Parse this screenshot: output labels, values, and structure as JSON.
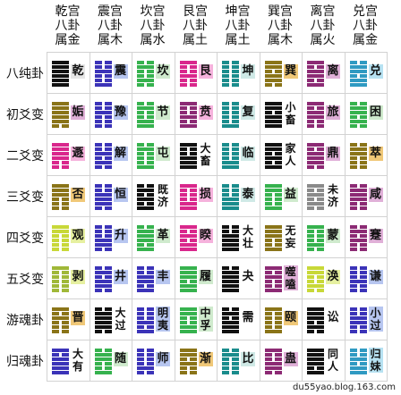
{
  "columns": [
    {
      "lines": [
        "乾宫",
        "八卦",
        "属金"
      ],
      "color": "#111111"
    },
    {
      "lines": [
        "震宫",
        "八卦",
        "属木"
      ],
      "color": "#3b33b8"
    },
    {
      "lines": [
        "坎宫",
        "八卦",
        "属水"
      ],
      "color": "#36b24e"
    },
    {
      "lines": [
        "艮宫",
        "八卦",
        "属土"
      ],
      "color": "#d9278c"
    },
    {
      "lines": [
        "坤宫",
        "八卦",
        "属土"
      ],
      "color": "#1a8c8c"
    },
    {
      "lines": [
        "巽宫",
        "八卦",
        "属木"
      ],
      "color": "#8a7418"
    },
    {
      "lines": [
        "离宫",
        "八卦",
        "属火"
      ],
      "color": "#8c2a74"
    },
    {
      "lines": [
        "兑宫",
        "八卦",
        "属金"
      ],
      "color": "#2f9ac2"
    }
  ],
  "rows": [
    "八纯卦",
    "初爻变",
    "二爻变",
    "三爻变",
    "四爻变",
    "五爻变",
    "游魂卦",
    "归魂卦"
  ],
  "cells": [
    [
      {
        "name": "乾",
        "lines": "111111",
        "color": "#111111",
        "bg": "#f0f0f0",
        "label_bg": "#e6e6e6"
      },
      {
        "name": "震",
        "lines": "100100",
        "color": "#3b33b8",
        "bg": "#f5f5ff",
        "label_bg": "#b7c6f0"
      },
      {
        "name": "坎",
        "lines": "010010",
        "color": "#36b24e",
        "bg": "#f2fbf2",
        "label_bg": "#cfeacd"
      },
      {
        "name": "艮",
        "lines": "001001",
        "color": "#d9278c",
        "bg": "#fdf1f8",
        "label_bg": "#f5b2dc"
      },
      {
        "name": "坤",
        "lines": "000000",
        "color": "#1a8c8c",
        "bg": "#eefaf8",
        "label_bg": "#cfe9e6"
      },
      {
        "name": "巽",
        "lines": "011011",
        "color": "#8a7418",
        "bg": "#fff8e0",
        "label_bg": "#f0c878"
      },
      {
        "name": "离",
        "lines": "101101",
        "color": "#8c2a74",
        "bg": "#fbf2f9",
        "label_bg": "#e0b0d8"
      },
      {
        "name": "兑",
        "lines": "110110",
        "color": "#2f9ac2",
        "bg": "#eef8fc",
        "label_bg": "#b7e2f2"
      }
    ],
    [
      {
        "name": "姤",
        "lines": "011111",
        "color": "#8a7418",
        "bg": "#fff8e0",
        "label_bg": "#e0b0d8"
      },
      {
        "name": "豫",
        "lines": "000100",
        "color": "#3b33b8",
        "bg": "#f5f5ff",
        "label_bg": "#b7c6f0"
      },
      {
        "name": "节",
        "lines": "110010",
        "color": "#36b24e",
        "bg": "#f2fbf2",
        "label_bg": "#cfeacd"
      },
      {
        "name": "贲",
        "lines": "101001",
        "color": "#8c2a74",
        "bg": "#fdf1f8",
        "label_bg": "#f5b2dc"
      },
      {
        "name": "复",
        "lines": "100000",
        "color": "#1a8c8c",
        "bg": "#eefaf8",
        "label_bg": "#cfe9e6"
      },
      {
        "name": "小畜",
        "lines": "111011",
        "color": "#111111",
        "bg": "#ffffff",
        "label_bg": "#ffffff"
      },
      {
        "name": "旅",
        "lines": "001101",
        "color": "#8c2a74",
        "bg": "#fbf2f9",
        "label_bg": "#e0b0d8"
      },
      {
        "name": "困",
        "lines": "010110",
        "color": "#36b24e",
        "bg": "#eef8fc",
        "label_bg": "#cfeacd"
      }
    ],
    [
      {
        "name": "遯",
        "lines": "001111",
        "color": "#d9278c",
        "bg": "#fdf1f8",
        "label_bg": "#f5b2dc"
      },
      {
        "name": "解",
        "lines": "010100",
        "color": "#3b33b8",
        "bg": "#f5f5ff",
        "label_bg": "#b7c6f0"
      },
      {
        "name": "屯",
        "lines": "100010",
        "color": "#36b24e",
        "bg": "#f2fbf2",
        "label_bg": "#cfeacd"
      },
      {
        "name": "大畜",
        "lines": "111001",
        "color": "#111111",
        "bg": "#ffffff",
        "label_bg": "#ffffff"
      },
      {
        "name": "临",
        "lines": "110000",
        "color": "#1a8c8c",
        "bg": "#eefaf8",
        "label_bg": "#cfe9e6"
      },
      {
        "name": "家人",
        "lines": "101011",
        "color": "#111111",
        "bg": "#ffffff",
        "label_bg": "#ffffff"
      },
      {
        "name": "鼎",
        "lines": "011101",
        "color": "#8c2a74",
        "bg": "#fbf2f9",
        "label_bg": "#e0b0d8"
      },
      {
        "name": "萃",
        "lines": "000110",
        "color": "#8a7418",
        "bg": "#fff8e0",
        "label_bg": "#f0c878"
      }
    ],
    [
      {
        "name": "否",
        "lines": "000111",
        "color": "#8a7418",
        "bg": "#fff8e0",
        "label_bg": "#f0c878"
      },
      {
        "name": "恒",
        "lines": "011100",
        "color": "#3b33b8",
        "bg": "#f5f5ff",
        "label_bg": "#b7c6f0"
      },
      {
        "name": "既济",
        "lines": "101010",
        "color": "#111111",
        "bg": "#ffffff",
        "label_bg": "#ffffff"
      },
      {
        "name": "损",
        "lines": "110001",
        "color": "#d9278c",
        "bg": "#fdf1f8",
        "label_bg": "#f5b2dc"
      },
      {
        "name": "泰",
        "lines": "111000",
        "color": "#1a8c8c",
        "bg": "#eefaf8",
        "label_bg": "#cfe9e6"
      },
      {
        "name": "益",
        "lines": "100011",
        "color": "#36b24e",
        "bg": "#f2fbf2",
        "label_bg": "#cfeacd"
      },
      {
        "name": "未济",
        "lines": "010101",
        "color": "#8a8a8a",
        "bg": "#ffffff",
        "label_bg": "#ffffff"
      },
      {
        "name": "咸",
        "lines": "001110",
        "color": "#8c2a74",
        "bg": "#fbf2f9",
        "label_bg": "#e0b0d8"
      }
    ],
    [
      {
        "name": "观",
        "lines": "000011",
        "color": "#c8d838",
        "bg": "#fbfde8",
        "label_bg": "#e6f0a0"
      },
      {
        "name": "升",
        "lines": "011000",
        "color": "#3b33b8",
        "bg": "#f5f5ff",
        "label_bg": "#b7c6f0"
      },
      {
        "name": "革",
        "lines": "101110",
        "color": "#36b24e",
        "bg": "#f2fbf2",
        "label_bg": "#cfeacd"
      },
      {
        "name": "睽",
        "lines": "110101",
        "color": "#d9278c",
        "bg": "#fdf1f8",
        "label_bg": "#f5b2dc"
      },
      {
        "name": "大壮",
        "lines": "111100",
        "color": "#111111",
        "bg": "#ffffff",
        "label_bg": "#ffffff"
      },
      {
        "name": "无妄",
        "lines": "100111",
        "color": "#8a7418",
        "bg": "#fff8e0",
        "label_bg": "#ffffff"
      },
      {
        "name": "蒙",
        "lines": "010001",
        "color": "#36b24e",
        "bg": "#f2fbf2",
        "label_bg": "#cfeacd"
      },
      {
        "name": "蹇",
        "lines": "001010",
        "color": "#8c2a74",
        "bg": "#fbf2f9",
        "label_bg": "#e0b0d8"
      }
    ],
    [
      {
        "name": "剥",
        "lines": "000001",
        "color": "#a0b838",
        "bg": "#fbfde8",
        "label_bg": "#e6f0a0"
      },
      {
        "name": "井",
        "lines": "011010",
        "color": "#3b33b8",
        "bg": "#f5f5ff",
        "label_bg": "#b7c6f0"
      },
      {
        "name": "丰",
        "lines": "101100",
        "color": "#3b33b8",
        "bg": "#f5f5ff",
        "label_bg": "#b7c6f0"
      },
      {
        "name": "履",
        "lines": "110111",
        "color": "#36b24e",
        "bg": "#f2fbf2",
        "label_bg": "#cfeacd"
      },
      {
        "name": "夬",
        "lines": "111110",
        "color": "#111111",
        "bg": "#ffffff",
        "label_bg": "#ffffff"
      },
      {
        "name": "噬嗑",
        "lines": "100101",
        "color": "#8c2a74",
        "bg": "#fbf2f9",
        "label_bg": "#e0b0d8"
      },
      {
        "name": "涣",
        "lines": "010011",
        "color": "#c8d838",
        "bg": "#fbfde8",
        "label_bg": "#e6f0a0"
      },
      {
        "name": "谦",
        "lines": "001000",
        "color": "#3b33b8",
        "bg": "#f5f5ff",
        "label_bg": "#b7c6f0"
      }
    ],
    [
      {
        "name": "晋",
        "lines": "000101",
        "color": "#8a7418",
        "bg": "#fff8e0",
        "label_bg": "#f0c878"
      },
      {
        "name": "大过",
        "lines": "011110",
        "color": "#111111",
        "bg": "#ffffff",
        "label_bg": "#ffffff"
      },
      {
        "name": "明夷",
        "lines": "101000",
        "color": "#3b33b8",
        "bg": "#f5f5ff",
        "label_bg": "#b7c6f0"
      },
      {
        "name": "中孚",
        "lines": "110011",
        "color": "#36b24e",
        "bg": "#f2fbf2",
        "label_bg": "#cfeacd"
      },
      {
        "name": "需",
        "lines": "111010",
        "color": "#111111",
        "bg": "#ffffff",
        "label_bg": "#ffffff"
      },
      {
        "name": "颐",
        "lines": "100001",
        "color": "#8a7418",
        "bg": "#fff8e0",
        "label_bg": "#f0c878"
      },
      {
        "name": "讼",
        "lines": "010111",
        "color": "#111111",
        "bg": "#ffffff",
        "label_bg": "#ffffff"
      },
      {
        "name": "小过",
        "lines": "001100",
        "color": "#3b33b8",
        "bg": "#f5f5ff",
        "label_bg": "#b7c6f0"
      }
    ],
    [
      {
        "name": "大有",
        "lines": "111101",
        "color": "#3b33b8",
        "bg": "#f5f5ff",
        "label_bg": "#ffffff"
      },
      {
        "name": "随",
        "lines": "100110",
        "color": "#36b24e",
        "bg": "#f2fbf2",
        "label_bg": "#cfeacd"
      },
      {
        "name": "师",
        "lines": "010000",
        "color": "#3b33b8",
        "bg": "#f5f5ff",
        "label_bg": "#b7c6f0"
      },
      {
        "name": "渐",
        "lines": "001011",
        "color": "#8a7418",
        "bg": "#fff8e0",
        "label_bg": "#f0c878"
      },
      {
        "name": "比",
        "lines": "000010",
        "color": "#1a8c8c",
        "bg": "#eefaf8",
        "label_bg": "#cfe9e6"
      },
      {
        "name": "蛊",
        "lines": "011001",
        "color": "#8c2a74",
        "bg": "#fbf2f9",
        "label_bg": "#e0b0d8"
      },
      {
        "name": "同人",
        "lines": "101111",
        "color": "#111111",
        "bg": "#ffffff",
        "label_bg": "#ffffff"
      },
      {
        "name": "归妹",
        "lines": "110100",
        "color": "#2f9ac2",
        "bg": "#eef8fc",
        "label_bg": "#b7e2f2"
      }
    ]
  ],
  "watermark": "du55yao.blog.163.com"
}
